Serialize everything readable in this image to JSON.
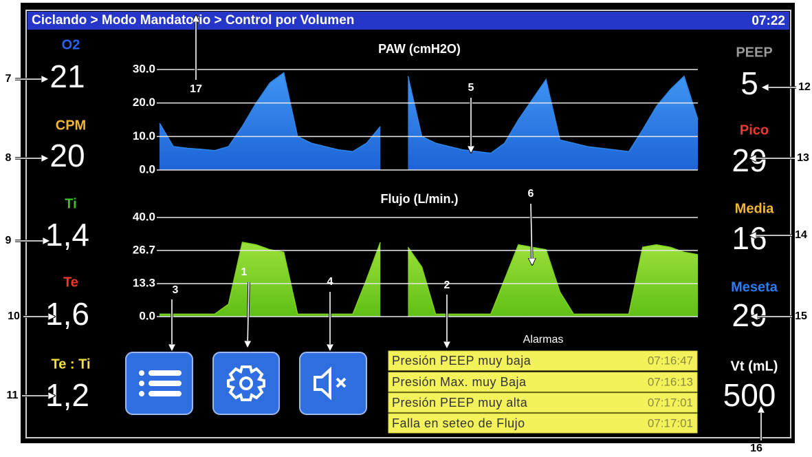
{
  "header": {
    "breadcrumb": "Ciclando > Modo Mandatorio > Control por Volumen",
    "time": "07:22"
  },
  "left_params": [
    {
      "label": "O2",
      "value": "21"
    },
    {
      "label": "CPM",
      "value": "20"
    },
    {
      "label": "Ti",
      "value": "1,4"
    },
    {
      "label": "Te",
      "value": "1,6"
    },
    {
      "label": "Te : Ti",
      "value": "1,2"
    }
  ],
  "right_params": [
    {
      "label": "PEEP",
      "value": "5"
    },
    {
      "label": "Pico",
      "value": "29"
    },
    {
      "label": "Media",
      "value": "16"
    },
    {
      "label": "Meseta",
      "value": "29"
    },
    {
      "label": "Vt (mL)",
      "value": "500"
    }
  ],
  "chart_data": [
    {
      "type": "area",
      "title": "PAW (cmH2O)",
      "color": "#2e86e8",
      "values": [
        14,
        7,
        6.5,
        6.2,
        5.8,
        7,
        13,
        20,
        26,
        29,
        10,
        8,
        7,
        6,
        5.5,
        8,
        13,
        null,
        28,
        10,
        8,
        7,
        6,
        5.5,
        5,
        8,
        15,
        21,
        27,
        9,
        8,
        7,
        6.5,
        6,
        5.5,
        12,
        19,
        24,
        28,
        15
      ],
      "ylim": [
        0,
        30
      ],
      "yticks": [
        {
          "value": 0,
          "label": "0.0"
        },
        {
          "value": 10,
          "label": "10.0"
        },
        {
          "value": 20,
          "label": "20.0"
        },
        {
          "value": 30,
          "label": "30.0"
        }
      ],
      "grid": true
    },
    {
      "type": "area",
      "title": "Flujo (L/min.)",
      "color": "#7fd320",
      "values": [
        1,
        1,
        1,
        1,
        1,
        5,
        30,
        29,
        27,
        26,
        1,
        1,
        1,
        1,
        1,
        15,
        30,
        null,
        28,
        20,
        1,
        1,
        1,
        1,
        1,
        15,
        29,
        28,
        27,
        10,
        1,
        1,
        1,
        1,
        1,
        28,
        29,
        28,
        26,
        25
      ],
      "ylim": [
        0,
        40
      ],
      "yticks": [
        {
          "value": 0,
          "label": "0.0"
        },
        13.3,
        26.7,
        {
          "value": 40,
          "label": "40.0"
        }
      ],
      "grid": true
    }
  ],
  "alarms": {
    "title": "Alarmas",
    "items": [
      {
        "message": "Presión PEEP muy baja",
        "time": "07:16:47"
      },
      {
        "message": "Presión Max. muy Baja",
        "time": "07:16:13"
      },
      {
        "message": "Presión PEEP muy alta",
        "time": "07:17:01"
      },
      {
        "message": "Falla en seteo de Flujo",
        "time": "07:17:01"
      }
    ]
  },
  "annotations": [
    "1",
    "2",
    "3",
    "4",
    "5",
    "6",
    "7",
    "8",
    "9",
    "10",
    "11",
    "12",
    "13",
    "14",
    "15",
    "16",
    "17"
  ]
}
